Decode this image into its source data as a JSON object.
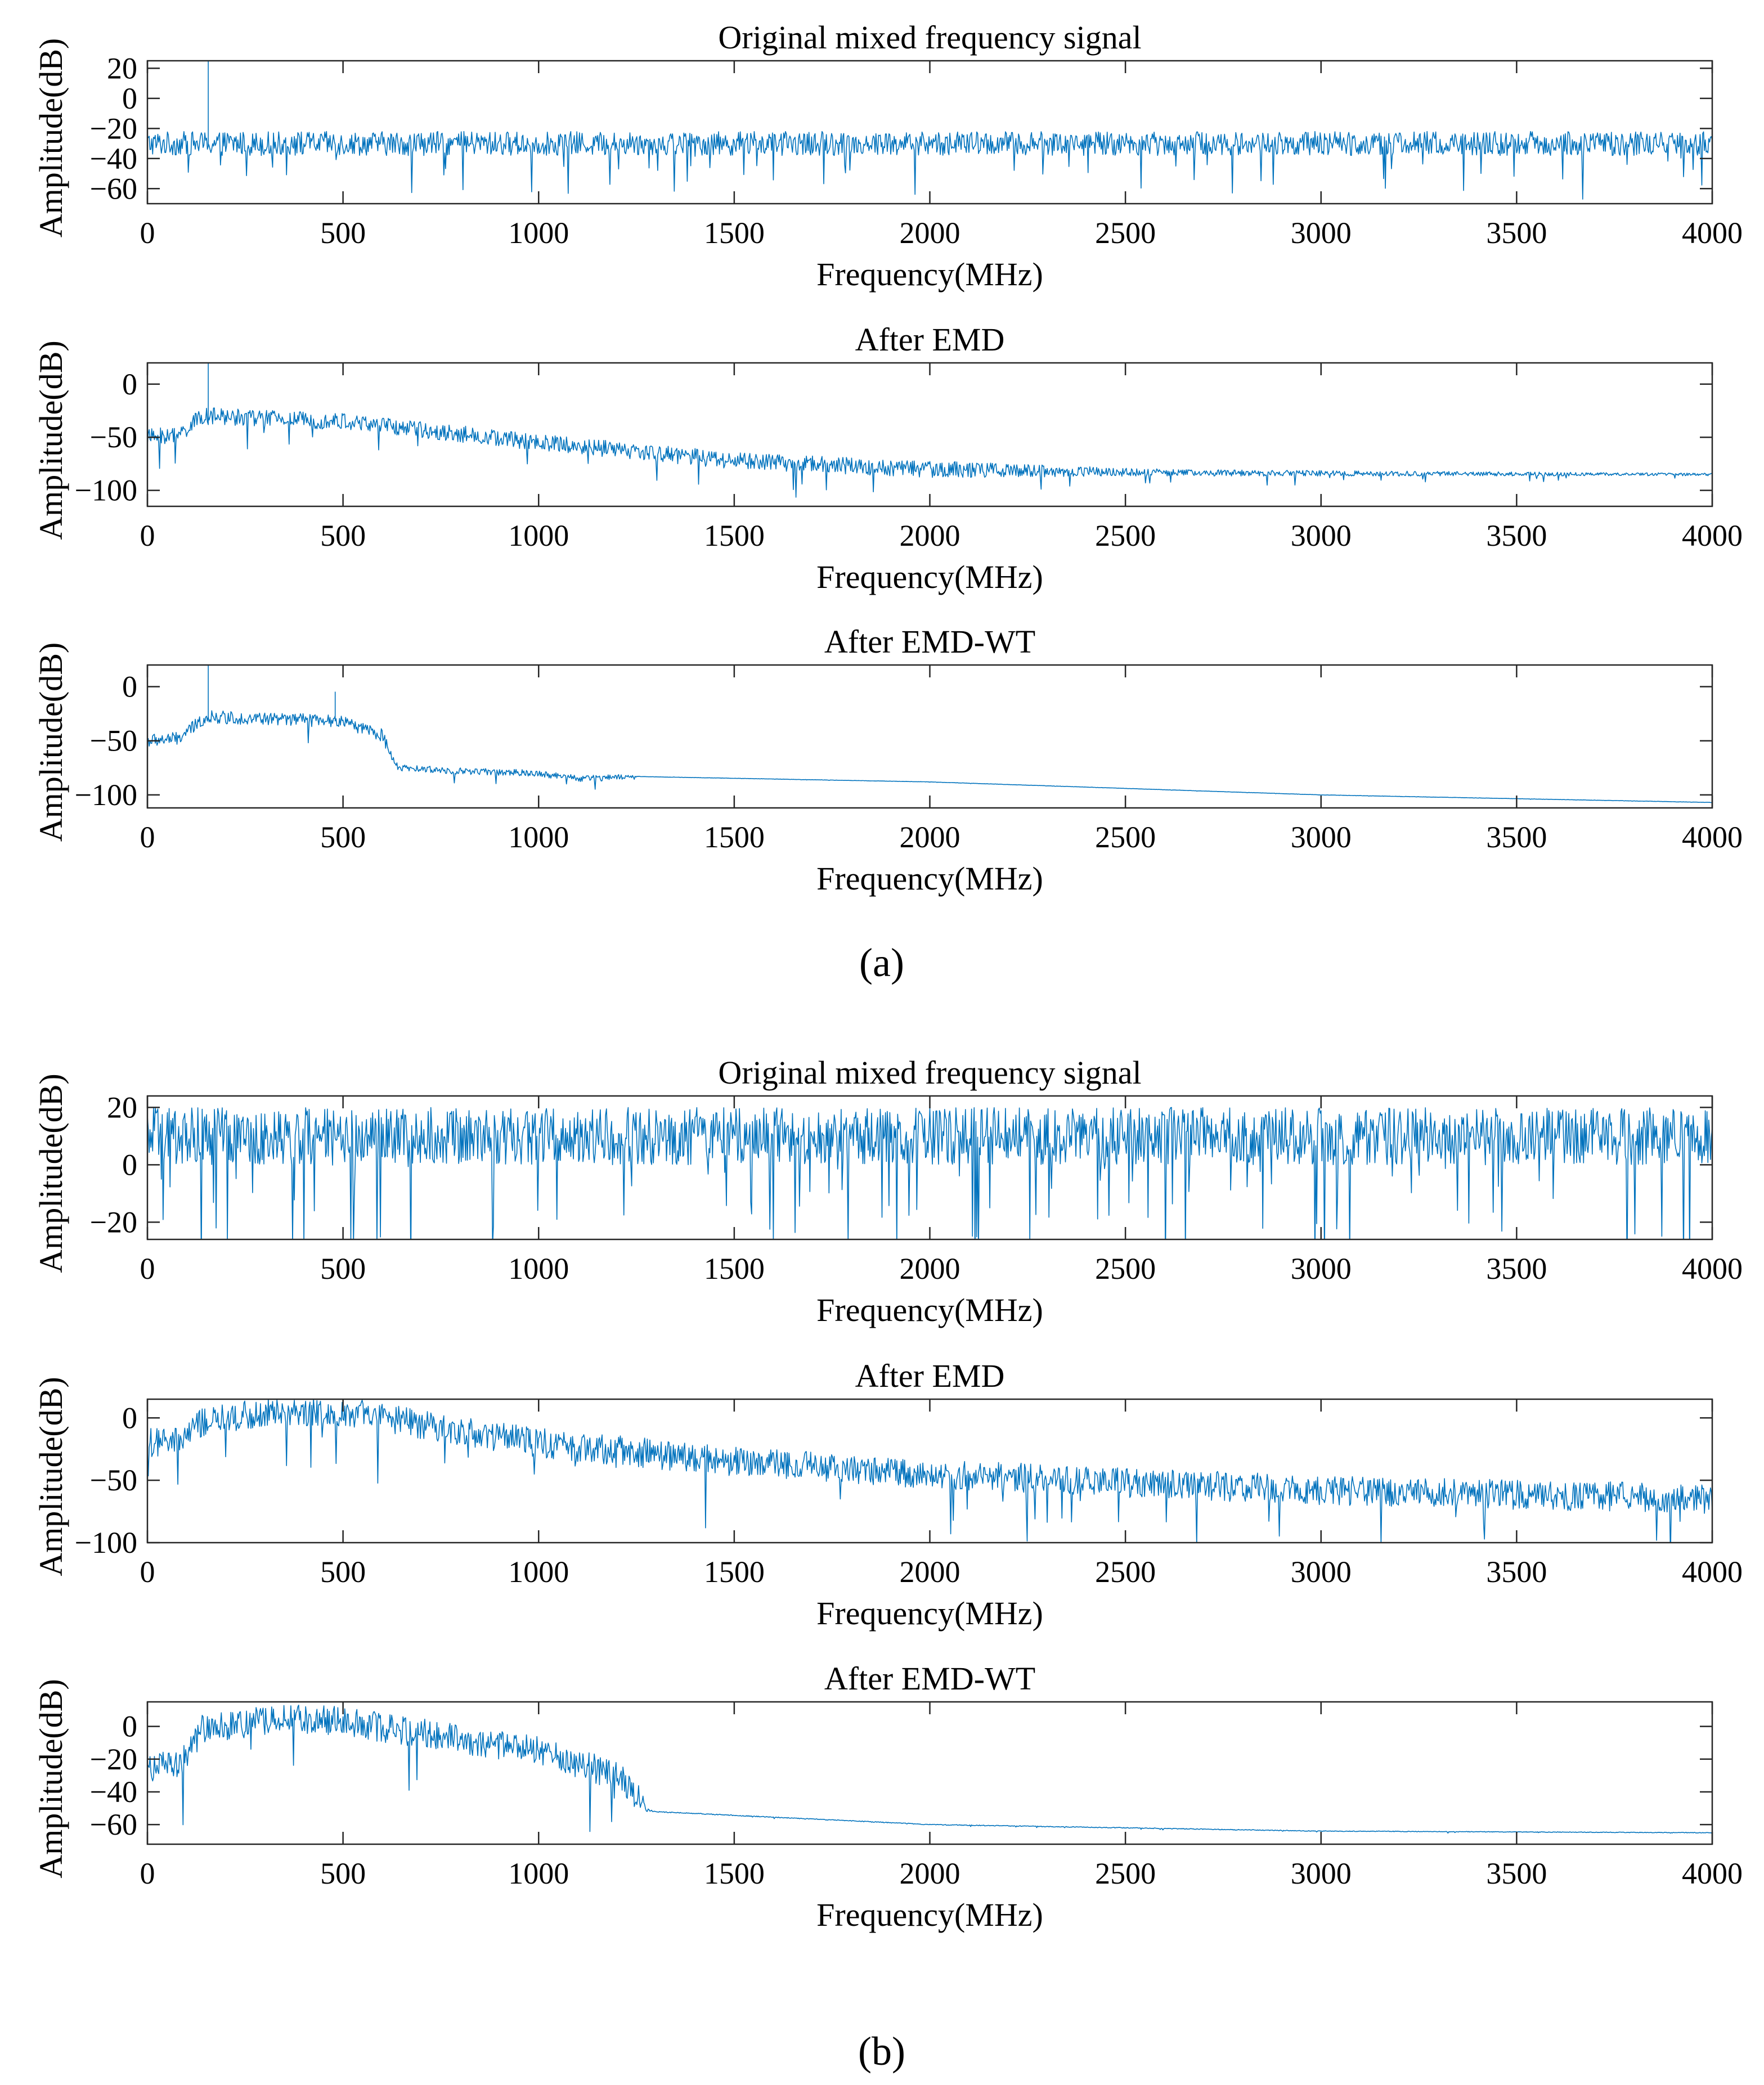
{
  "figure_labels": {
    "a": "(a)",
    "b": "(b)"
  },
  "colors": {
    "series": "#0072BD",
    "axis": "#262626"
  },
  "chart_data": [
    {
      "id": "a1",
      "panel": "a",
      "type": "line",
      "title": "Original mixed frequency signal",
      "xlabel": "Frequency(MHz)",
      "ylabel": "Amplitude(dB)",
      "xlim": [
        0,
        4000
      ],
      "ylim": [
        -70,
        25
      ],
      "xticks": [
        0,
        500,
        1000,
        1500,
        2000,
        2500,
        3000,
        3500,
        4000
      ],
      "yticks": [
        20,
        0,
        -20,
        -40,
        -60
      ],
      "ytick_labels": [
        "20",
        "0",
        "−20",
        "−40",
        "−60"
      ],
      "xtick_labels": [
        "0",
        "500",
        "1000",
        "1500",
        "2000",
        "2500",
        "3000",
        "3500",
        "4000"
      ],
      "series": [
        {
          "name": "spectrum",
          "noise_amplitude": 8,
          "dips": 18,
          "envelope": [
            [
              0,
              -30
            ],
            [
              4000,
              -30
            ]
          ],
          "spikes": [
            [
              155,
              25
            ]
          ]
        }
      ]
    },
    {
      "id": "a2",
      "panel": "a",
      "type": "line",
      "title": "After EMD",
      "xlabel": "Frequency(MHz)",
      "ylabel": "Amplitude(dB)",
      "xlim": [
        0,
        4000
      ],
      "ylim": [
        -115,
        20
      ],
      "xticks": [
        0,
        500,
        1000,
        1500,
        2000,
        2500,
        3000,
        3500,
        4000
      ],
      "yticks": [
        0,
        -50,
        -100
      ],
      "ytick_labels": [
        "0",
        "−50",
        "−100"
      ],
      "xtick_labels": [
        "0",
        "500",
        "1000",
        "1500",
        "2000",
        "2500",
        "3000",
        "3500",
        "4000"
      ],
      "series": [
        {
          "name": "spectrum",
          "noise_amplitude": 8,
          "dips": 10,
          "envelope": [
            [
              0,
              -50
            ],
            [
              80,
              -48
            ],
            [
              140,
              -30
            ],
            [
              500,
              -35
            ],
            [
              1000,
              -55
            ],
            [
              1500,
              -72
            ],
            [
              2000,
              -80
            ],
            [
              2500,
              -83
            ],
            [
              3000,
              -84
            ],
            [
              4000,
              -85
            ]
          ],
          "noise_fade": [
            [
              0,
              1
            ],
            [
              2000,
              1
            ],
            [
              2600,
              0.4
            ],
            [
              4000,
              0.15
            ]
          ],
          "spikes": [
            [
              155,
              20
            ]
          ]
        }
      ]
    },
    {
      "id": "a3",
      "panel": "a",
      "type": "line",
      "title": "After EMD-WT",
      "xlabel": "Frequency(MHz)",
      "ylabel": "Amplitude(dB)",
      "xlim": [
        0,
        4000
      ],
      "ylim": [
        -112,
        20
      ],
      "xticks": [
        0,
        500,
        1000,
        1500,
        2000,
        2500,
        3000,
        3500,
        4000
      ],
      "yticks": [
        0,
        -50,
        -100
      ],
      "ytick_labels": [
        "0",
        "−50",
        "−100"
      ],
      "xtick_labels": [
        "0",
        "500",
        "1000",
        "1500",
        "2000",
        "2500",
        "3000",
        "3500",
        "4000"
      ],
      "series": [
        {
          "name": "spectrum",
          "noise_amplitude": 6,
          "dips": 6,
          "envelope": [
            [
              0,
              -50
            ],
            [
              80,
              -48
            ],
            [
              150,
              -28
            ],
            [
              500,
              -32
            ],
            [
              600,
              -45
            ],
            [
              640,
              -75
            ],
            [
              800,
              -78
            ],
            [
              1000,
              -80
            ],
            [
              1100,
              -85
            ],
            [
              1250,
              -83
            ],
            [
              2000,
              -88
            ],
            [
              3000,
              -100
            ],
            [
              4000,
              -107
            ]
          ],
          "noise_fade": [
            [
              0,
              1
            ],
            [
              600,
              1
            ],
            [
              640,
              0.5
            ],
            [
              1200,
              0.5
            ],
            [
              1260,
              0.02
            ],
            [
              4000,
              0.02
            ]
          ],
          "spikes": [
            [
              155,
              20
            ],
            [
              480,
              -5
            ]
          ]
        }
      ]
    },
    {
      "id": "b1",
      "panel": "b",
      "type": "line",
      "title": "Original mixed frequency signal",
      "xlabel": "Frequency(MHz)",
      "ylabel": "Amplitude(dB)",
      "xlim": [
        0,
        4000
      ],
      "ylim": [
        -26,
        24
      ],
      "xticks": [
        0,
        500,
        1000,
        1500,
        2000,
        2500,
        3000,
        3500,
        4000
      ],
      "yticks": [
        20,
        0,
        -20
      ],
      "ytick_labels": [
        "20",
        "0",
        "−20"
      ],
      "xtick_labels": [
        "0",
        "500",
        "1000",
        "1500",
        "2000",
        "2500",
        "3000",
        "3500",
        "4000"
      ],
      "series": [
        {
          "name": "spectrum",
          "noise_amplitude": 10,
          "dips": 30,
          "envelope": [
            [
              0,
              10
            ],
            [
              4000,
              10
            ]
          ],
          "spikes": []
        }
      ]
    },
    {
      "id": "b2",
      "panel": "b",
      "type": "line",
      "title": "After EMD",
      "xlabel": "Frequency(MHz)",
      "ylabel": "Amplitude(dB)",
      "xlim": [
        0,
        4000
      ],
      "ylim": [
        -100,
        15
      ],
      "xticks": [
        0,
        500,
        1000,
        1500,
        2000,
        2500,
        3000,
        3500,
        4000
      ],
      "yticks": [
        0,
        -50,
        -100
      ],
      "ytick_labels": [
        "0",
        "−50",
        "−100"
      ],
      "xtick_labels": [
        "0",
        "500",
        "1000",
        "1500",
        "2000",
        "2500",
        "3000",
        "3500",
        "4000"
      ],
      "series": [
        {
          "name": "spectrum",
          "noise_amplitude": 12,
          "dips": 14,
          "envelope": [
            [
              0,
              -20
            ],
            [
              80,
              -20
            ],
            [
              130,
              -5
            ],
            [
              300,
              5
            ],
            [
              500,
              5
            ],
            [
              1000,
              -20
            ],
            [
              1500,
              -35
            ],
            [
              2000,
              -45
            ],
            [
              2500,
              -52
            ],
            [
              3000,
              -58
            ],
            [
              4000,
              -65
            ]
          ],
          "spikes": []
        }
      ]
    },
    {
      "id": "b3",
      "panel": "b",
      "type": "line",
      "title": "After EMD-WT",
      "xlabel": "Frequency(MHz)",
      "ylabel": "Amplitude(dB)",
      "xlim": [
        0,
        4000
      ],
      "ylim": [
        -72,
        15
      ],
      "xticks": [
        0,
        500,
        1000,
        1500,
        2000,
        2500,
        3000,
        3500,
        4000
      ],
      "yticks": [
        0,
        -20,
        -40,
        -60
      ],
      "ytick_labels": [
        "0",
        "−20",
        "−40",
        "−60"
      ],
      "xtick_labels": [
        "0",
        "500",
        "1000",
        "1500",
        "2000",
        "2500",
        "3000",
        "3500",
        "4000"
      ],
      "series": [
        {
          "name": "spectrum",
          "noise_amplitude": 9,
          "dips": 8,
          "envelope": [
            [
              0,
              -25
            ],
            [
              80,
              -24
            ],
            [
              140,
              -2
            ],
            [
              350,
              5
            ],
            [
              500,
              3
            ],
            [
              1000,
              -15
            ],
            [
              1200,
              -30
            ],
            [
              1290,
              -52
            ],
            [
              2000,
              -60
            ],
            [
              3000,
              -64
            ],
            [
              4000,
              -65
            ]
          ],
          "noise_fade": [
            [
              0,
              1
            ],
            [
              1250,
              1
            ],
            [
              1290,
              0.03
            ],
            [
              4000,
              0.02
            ]
          ],
          "spikes": []
        }
      ]
    }
  ]
}
